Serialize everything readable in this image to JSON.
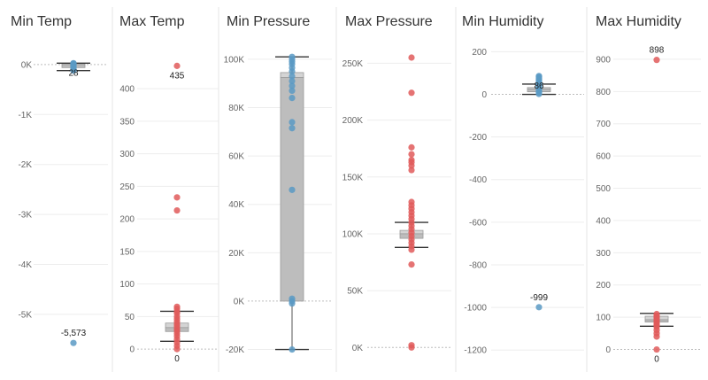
{
  "chart_data": [
    {
      "type": "boxplot",
      "title": "Min Temp",
      "color": "#5b9ac4",
      "ylim": [
        -5800,
        300
      ],
      "y_ticks": [
        0,
        -1000,
        -2000,
        -3000,
        -4000,
        -5000
      ],
      "tick_labels": [
        "0K",
        "-1K",
        "-2K",
        "-3K",
        "-4K",
        "-5K"
      ],
      "box": {
        "whisker_low": -120,
        "q1": -60,
        "median": 0,
        "q3": 20,
        "whisker_high": 28
      },
      "points": [
        28,
        20,
        10,
        0,
        -10,
        -20,
        -40,
        -60,
        -80,
        -100,
        -120,
        -5573
      ],
      "annotations": [
        {
          "value": 28,
          "label": "28"
        },
        {
          "value": -5573,
          "label": "-5,573"
        }
      ]
    },
    {
      "type": "boxplot",
      "title": "Max Temp",
      "color": "#e05a5a",
      "ylim": [
        -8,
        460
      ],
      "y_ticks": [
        0,
        50,
        100,
        150,
        200,
        250,
        300,
        350,
        400
      ],
      "tick_labels": [
        "0",
        "50",
        "100",
        "150",
        "200",
        "250",
        "300",
        "350",
        "400"
      ],
      "box": {
        "whisker_low": 12,
        "q1": 27,
        "median": 33,
        "q3": 40,
        "whisker_high": 58
      },
      "points": [
        435,
        233,
        213,
        65,
        62,
        58,
        55,
        50,
        46,
        42,
        38,
        35,
        31,
        28,
        24,
        20,
        15,
        10,
        5,
        0
      ],
      "annotations": [
        {
          "value": 435,
          "label": "435"
        },
        {
          "value": 0,
          "label": "0"
        }
      ]
    },
    {
      "type": "boxplot",
      "title": "Min Pressure",
      "color": "#5b9ac4",
      "ylim": [
        -22000,
        104000
      ],
      "y_ticks": [
        100000,
        80000,
        60000,
        40000,
        20000,
        0,
        -20000
      ],
      "tick_labels": [
        "100K",
        "80K",
        "60K",
        "40K",
        "20K",
        "0K",
        "-20K"
      ],
      "box": {
        "whisker_low": -20000,
        "q1": 0,
        "median": 92500,
        "q3": 94500,
        "whisker_high": 101000
      },
      "points": [
        101000,
        100000,
        99000,
        98000,
        96500,
        95000,
        93000,
        91000,
        89000,
        87000,
        84000,
        74000,
        71500,
        46000,
        1000,
        0,
        -1000,
        -20000
      ],
      "annotations": []
    },
    {
      "type": "boxplot",
      "title": "Max Pressure",
      "color": "#e05a5a",
      "ylim": [
        -6000,
        262000
      ],
      "y_ticks": [
        0,
        50000,
        100000,
        150000,
        200000,
        250000
      ],
      "tick_labels": [
        "0K",
        "50K",
        "100K",
        "150K",
        "200K",
        "250K"
      ],
      "box": {
        "whisker_low": 88000,
        "q1": 96000,
        "median": 100000,
        "q3": 103000,
        "whisker_high": 110000
      },
      "points": [
        255000,
        224000,
        176000,
        170000,
        165000,
        163000,
        160000,
        156000,
        128000,
        125000,
        122000,
        119000,
        116000,
        113000,
        110000,
        107000,
        104000,
        101000,
        98000,
        95000,
        92000,
        89000,
        86000,
        73000,
        2000,
        0
      ],
      "annotations": []
    },
    {
      "type": "boxplot",
      "title": "Min Humidity",
      "color": "#5b9ac4",
      "ylim": [
        -1220,
        210
      ],
      "y_ticks": [
        200,
        0,
        -200,
        -400,
        -600,
        -800,
        -1000,
        -1200
      ],
      "tick_labels": [
        "200",
        "0",
        "-200",
        "-400",
        "-600",
        "-800",
        "-1000",
        "-1200"
      ],
      "box": {
        "whisker_low": 0,
        "q1": 12,
        "median": 25,
        "q3": 32,
        "whisker_high": 48
      },
      "points": [
        86,
        82,
        77,
        72,
        66,
        60,
        55,
        50,
        45,
        40,
        35,
        30,
        25,
        20,
        14,
        8,
        2,
        -999
      ],
      "annotations": [
        {
          "value": 86,
          "label": "86"
        },
        {
          "value": -999,
          "label": "-999"
        }
      ]
    },
    {
      "type": "boxplot",
      "title": "Max Humidity",
      "color": "#e05a5a",
      "ylim": [
        -15,
        930
      ],
      "y_ticks": [
        0,
        100,
        200,
        300,
        400,
        500,
        600,
        700,
        800,
        900
      ],
      "tick_labels": [
        "0",
        "100",
        "200",
        "300",
        "400",
        "500",
        "600",
        "700",
        "800",
        "900"
      ],
      "box": {
        "whisker_low": 72,
        "q1": 85,
        "median": 92,
        "q3": 103,
        "whisker_high": 112
      },
      "points": [
        898,
        110,
        105,
        100,
        95,
        90,
        85,
        80,
        75,
        70,
        60,
        50,
        40,
        0
      ],
      "annotations": [
        {
          "value": 898,
          "label": "898"
        },
        {
          "value": 0,
          "label": "0"
        }
      ]
    }
  ]
}
